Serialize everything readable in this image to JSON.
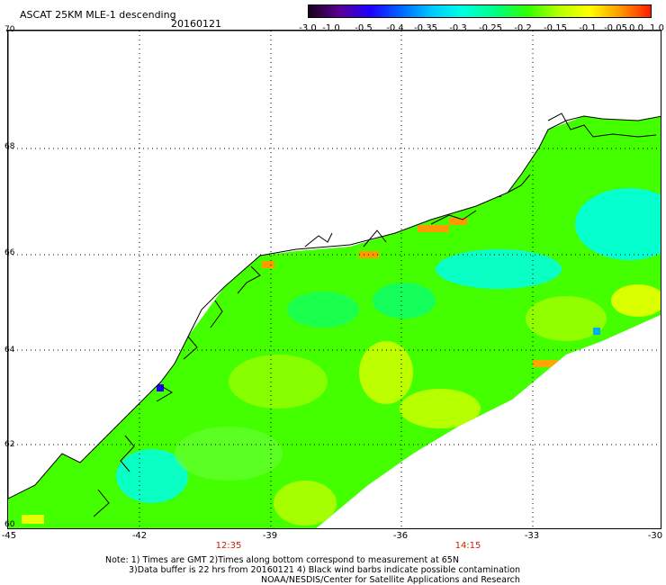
{
  "header": {
    "title": "ASCAT 25KM MLE-1 descending",
    "date": "20160121"
  },
  "colorbar": {
    "labels": [
      "-3.0",
      "-1.0",
      "-0.5",
      "-0.4",
      "-0.35",
      "-0.3",
      "-0.25",
      "-0.2",
      "-0.15",
      "-0.1",
      "-0.05",
      "0.0",
      "1.0"
    ]
  },
  "axes": {
    "y_ticks": [
      "70",
      "68",
      "66",
      "64",
      "62",
      "60"
    ],
    "x_ticks": [
      "-45",
      "-42",
      "-39",
      "-36",
      "-33",
      "-30"
    ],
    "lon_range": [
      -45,
      -30
    ],
    "lat_range": [
      60,
      70
    ],
    "grid": "dotted"
  },
  "times": {
    "t1": "12:35",
    "t2": "14:15"
  },
  "notes": {
    "line1": "Note: 1) Times are GMT 2)Times along bottom correspond to measurement at 65N",
    "line2": "3)Data buffer is 22 hrs from 20160121 4) Black wind barbs indicate possible contamination",
    "credit": "NOAA/NESDIS/Center for Satellite Applications and Research"
  },
  "colors": {
    "swath_main": "#44ff00",
    "cyan": "#00ffe6",
    "yellow": "#e6ff00",
    "orange": "#ff9900",
    "time_label": "#cc2200"
  }
}
